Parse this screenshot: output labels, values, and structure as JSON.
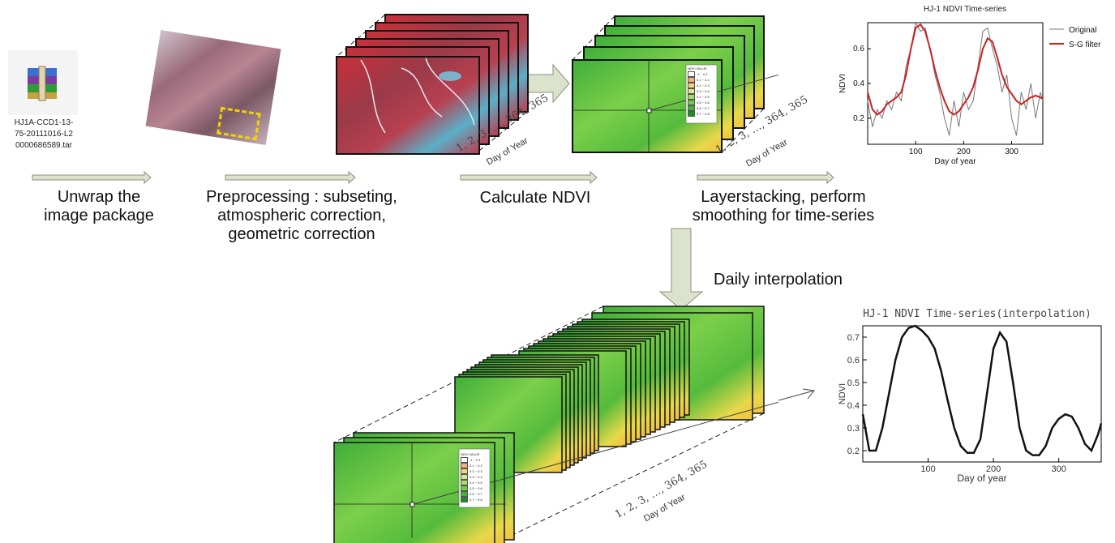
{
  "file": {
    "name_lines": [
      "HJ1A-CCD1-13-",
      "75-20111016-L2",
      "0000686589.tar"
    ]
  },
  "steps": {
    "unwrap": [
      "Unwrap the",
      "image package"
    ],
    "preprocess": [
      "Preprocessing : subseting,",
      "atmospheric correction,",
      "geometric correction"
    ],
    "ndvi": [
      "Calculate NDVI"
    ],
    "layerstack": [
      "Layerstacking, perform",
      "smoothing for time-series"
    ],
    "daily": [
      "Daily interpolation"
    ]
  },
  "stack_labels": {
    "doy_sequence": "1, 2, 3, …, 364, 365",
    "doy_caption": "Day of Year"
  },
  "legend": {
    "title": "NDVI VALUE",
    "items": [
      "-1 ~ 0.1",
      "0.1 ~ 0.2",
      "0.2 ~ 0.3",
      "0.3 ~ 0.4",
      "0.4 ~ 0.5",
      "0.5 ~ 0.6",
      "0.6 ~ 0.7",
      "0.7 ~ 0.8"
    ],
    "colors": [
      "#ffffff",
      "#f2b27a",
      "#f4d67a",
      "#d9e88a",
      "#a9dd6a",
      "#6fcd4a",
      "#3fb53a",
      "#1f8f2a"
    ]
  },
  "colors": {
    "arrow_fill": "#dde2cc",
    "arrow_stroke": "#8a9080",
    "sg_line": "#cc2020",
    "original_line": "#777777",
    "interp_line": "#111111"
  },
  "chart_data": [
    {
      "type": "line",
      "title": "HJ-1 NDVI Time-series",
      "xlabel": "Day of year",
      "ylabel": "NDVI",
      "xlim": [
        0,
        365
      ],
      "ylim": [
        0.05,
        0.75
      ],
      "xticks": [
        100,
        200,
        300
      ],
      "yticks": [
        0.2,
        0.4,
        0.6
      ],
      "legend_position": "top-right",
      "series": [
        {
          "name": "Original",
          "x": [
            0,
            10,
            20,
            30,
            40,
            50,
            60,
            70,
            80,
            90,
            100,
            110,
            120,
            130,
            140,
            150,
            160,
            170,
            180,
            190,
            200,
            210,
            220,
            230,
            240,
            250,
            260,
            270,
            280,
            290,
            300,
            310,
            320,
            330,
            340,
            350,
            360,
            365
          ],
          "y": [
            0.3,
            0.15,
            0.25,
            0.2,
            0.3,
            0.25,
            0.35,
            0.3,
            0.5,
            0.6,
            0.75,
            0.7,
            0.72,
            0.6,
            0.45,
            0.35,
            0.2,
            0.1,
            0.3,
            0.15,
            0.35,
            0.25,
            0.3,
            0.5,
            0.7,
            0.72,
            0.6,
            0.5,
            0.35,
            0.45,
            0.2,
            0.1,
            0.35,
            0.25,
            0.4,
            0.2,
            0.35,
            0.3
          ]
        },
        {
          "name": "S-G filter",
          "x": [
            0,
            10,
            20,
            30,
            40,
            50,
            60,
            70,
            80,
            90,
            100,
            110,
            120,
            130,
            140,
            150,
            160,
            170,
            180,
            190,
            200,
            210,
            220,
            230,
            240,
            250,
            260,
            270,
            280,
            290,
            300,
            310,
            320,
            330,
            340,
            350,
            360,
            365
          ],
          "y": [
            0.35,
            0.25,
            0.22,
            0.24,
            0.28,
            0.3,
            0.32,
            0.35,
            0.45,
            0.6,
            0.72,
            0.74,
            0.7,
            0.6,
            0.48,
            0.38,
            0.3,
            0.24,
            0.22,
            0.24,
            0.28,
            0.32,
            0.38,
            0.48,
            0.6,
            0.66,
            0.64,
            0.55,
            0.45,
            0.38,
            0.34,
            0.3,
            0.28,
            0.3,
            0.32,
            0.33,
            0.32,
            0.31
          ]
        }
      ]
    },
    {
      "type": "line",
      "title": "HJ-1 NDVI Time-series(interpolation)",
      "xlabel": "Day of year",
      "ylabel": "NDVI",
      "xlim": [
        0,
        365
      ],
      "ylim": [
        0.15,
        0.75
      ],
      "xticks": [
        100,
        200,
        300
      ],
      "yticks": [
        0.2,
        0.3,
        0.4,
        0.5,
        0.6,
        0.7
      ],
      "series": [
        {
          "x": [
            0,
            10,
            20,
            30,
            40,
            50,
            60,
            70,
            80,
            90,
            100,
            110,
            120,
            130,
            140,
            150,
            160,
            170,
            180,
            190,
            200,
            210,
            220,
            230,
            240,
            250,
            260,
            270,
            280,
            290,
            300,
            310,
            320,
            330,
            340,
            350,
            360,
            365
          ],
          "y": [
            0.36,
            0.2,
            0.2,
            0.3,
            0.45,
            0.6,
            0.7,
            0.74,
            0.75,
            0.73,
            0.7,
            0.65,
            0.55,
            0.42,
            0.3,
            0.22,
            0.19,
            0.19,
            0.25,
            0.45,
            0.65,
            0.72,
            0.68,
            0.5,
            0.3,
            0.2,
            0.18,
            0.18,
            0.22,
            0.3,
            0.34,
            0.36,
            0.35,
            0.3,
            0.23,
            0.2,
            0.27,
            0.32
          ]
        }
      ]
    }
  ]
}
